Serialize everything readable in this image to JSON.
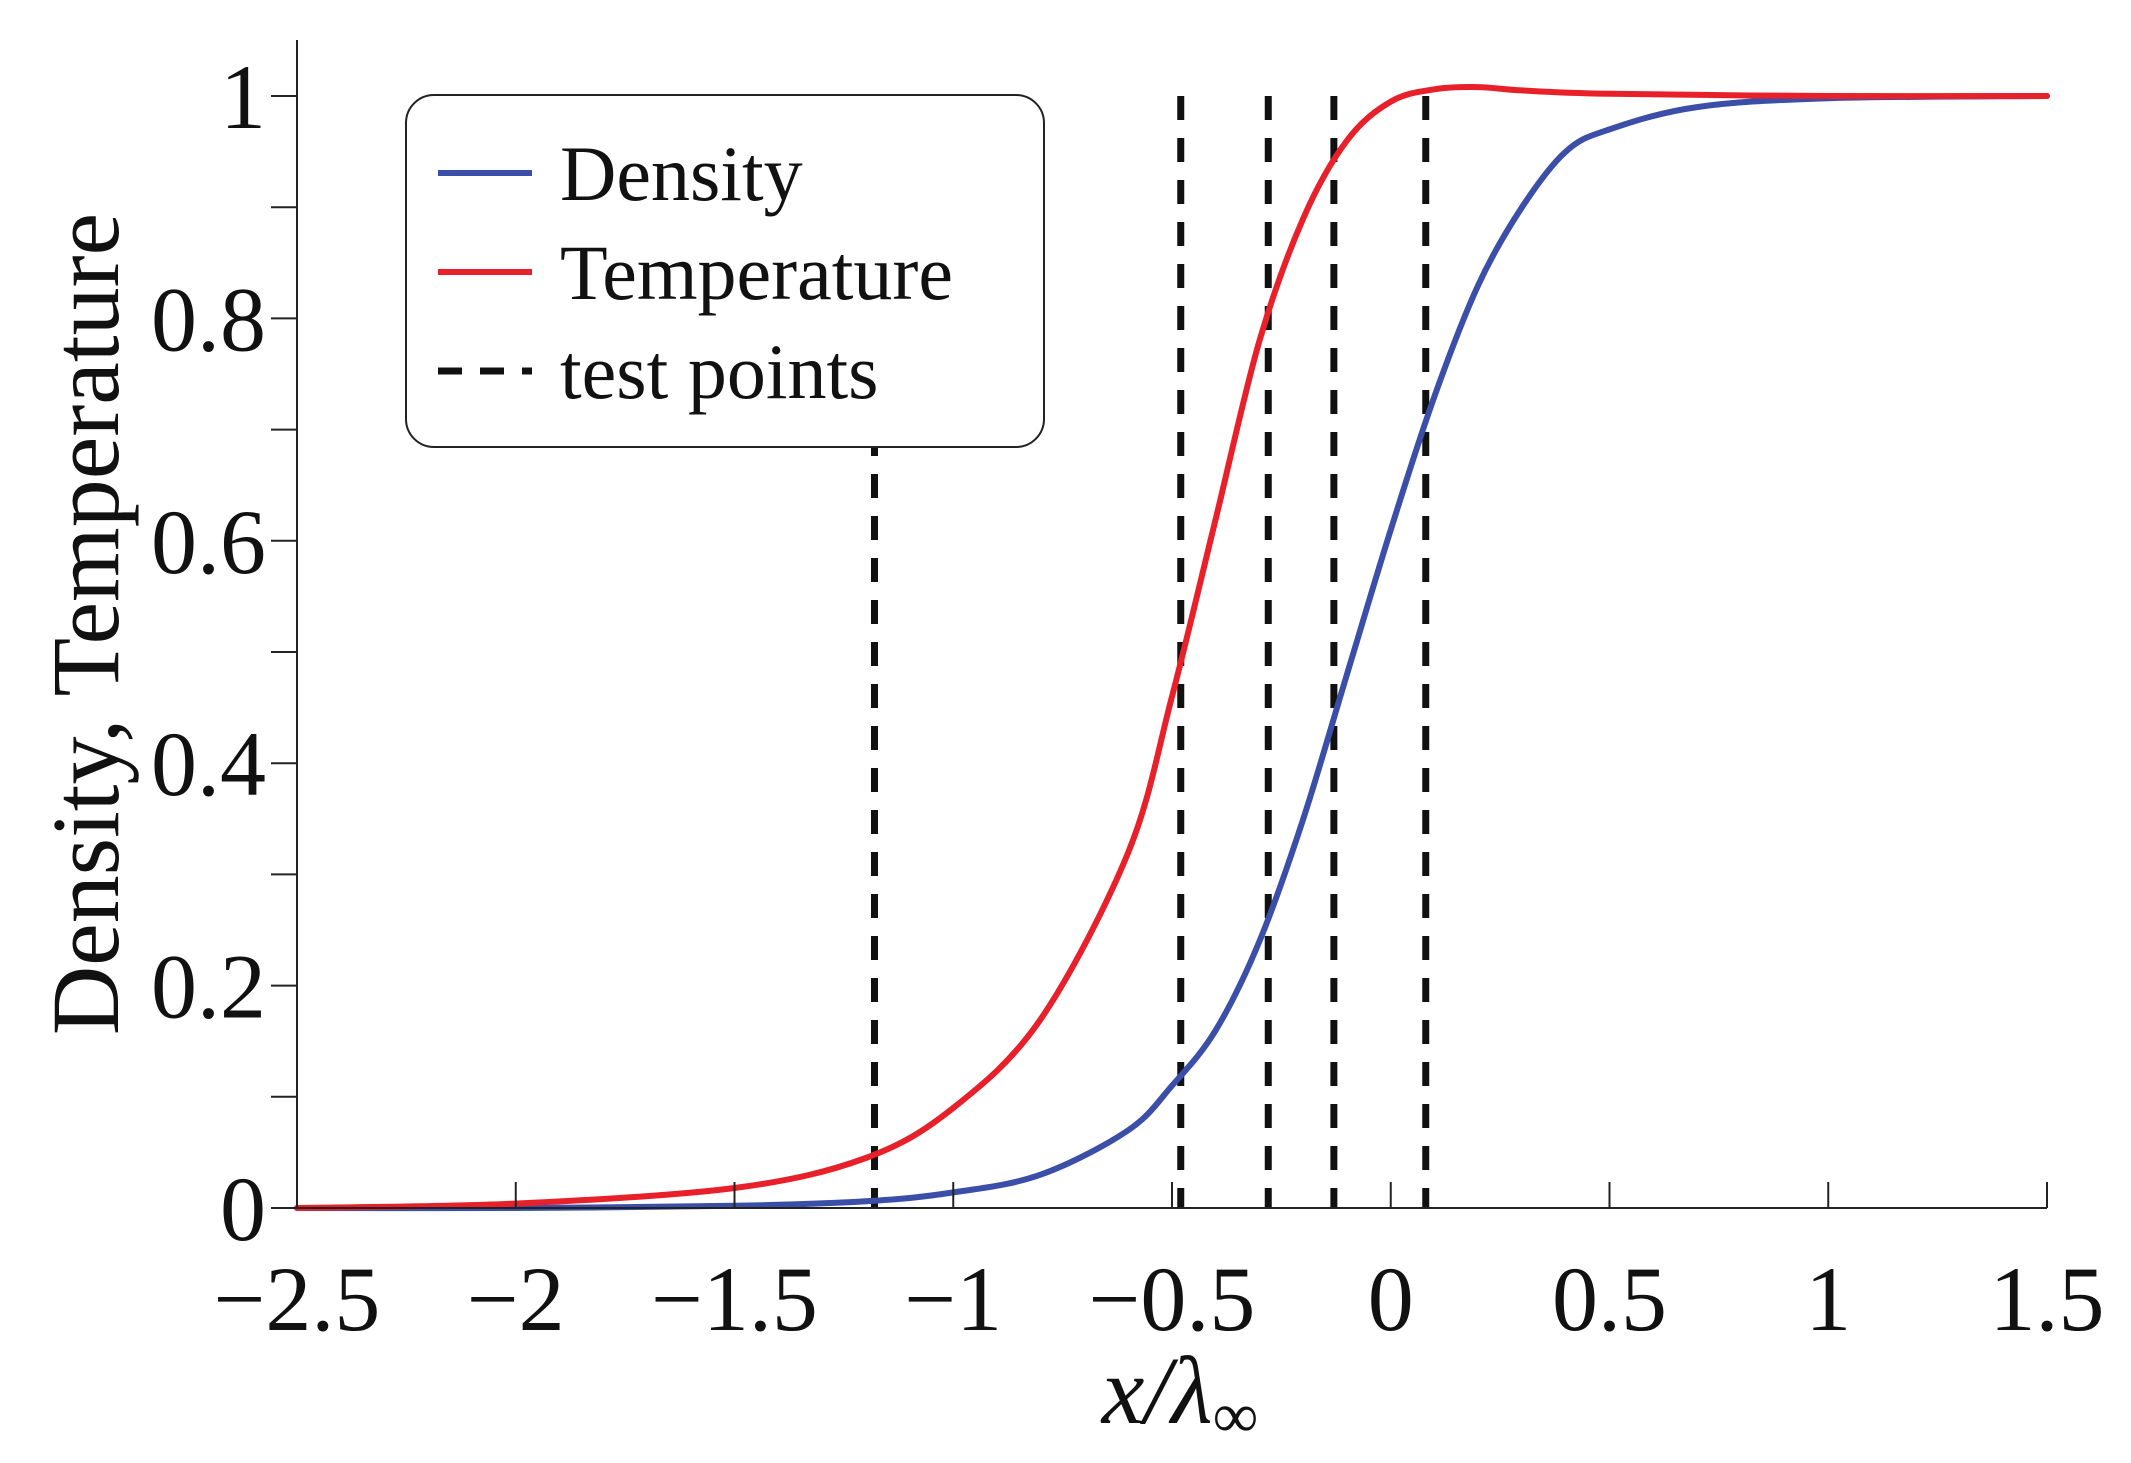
{
  "chart_data": {
    "type": "line",
    "title": "",
    "xlabel": "x/λ∞",
    "xlabel_main": "x/λ",
    "xlabel_sub": "∞",
    "ylabel": "Density, Temperature",
    "xlim": [
      -2.5,
      1.5
    ],
    "ylim": [
      0,
      1.05
    ],
    "grid": false,
    "legend_position": "top-left",
    "x_ticks": [
      -2.5,
      -2,
      -1.5,
      -1,
      -0.5,
      0,
      0.5,
      1,
      1.5
    ],
    "x_tick_labels": [
      "−2.5",
      "−2",
      "−1.5",
      "−1",
      "−0.5",
      "0",
      "0.5",
      "1",
      "1.5"
    ],
    "y_major_ticks": [
      0,
      0.2,
      0.4,
      0.6,
      0.8,
      1
    ],
    "y_tick_labels": [
      "0",
      "0.2",
      "0.4",
      "0.6",
      "0.8",
      "1"
    ],
    "y_minor_ticks": [
      0.1,
      0.3,
      0.5,
      0.7,
      0.9
    ],
    "series": [
      {
        "name": "Density",
        "color": "#3c4fa8",
        "x": [
          -2.5,
          -2.0,
          -1.5,
          -1.2,
          -1.0,
          -0.8,
          -0.6,
          -0.5,
          -0.4,
          -0.3,
          -0.2,
          -0.1,
          0.0,
          0.1,
          0.2,
          0.3,
          0.4,
          0.5,
          0.7,
          1.0,
          1.5
        ],
        "y": [
          0.0,
          0.0,
          0.002,
          0.006,
          0.014,
          0.03,
          0.07,
          0.11,
          0.16,
          0.24,
          0.35,
          0.48,
          0.61,
          0.73,
          0.83,
          0.9,
          0.95,
          0.97,
          0.99,
          0.998,
          1.0
        ]
      },
      {
        "name": "Temperature",
        "color": "#e8202a",
        "x": [
          -2.5,
          -2.0,
          -1.5,
          -1.2,
          -1.0,
          -0.8,
          -0.6,
          -0.5,
          -0.4,
          -0.3,
          -0.2,
          -0.1,
          0.0,
          0.1,
          0.2,
          0.3,
          0.5,
          1.0,
          1.5
        ],
        "y": [
          0.0,
          0.004,
          0.018,
          0.045,
          0.09,
          0.17,
          0.32,
          0.46,
          0.62,
          0.78,
          0.89,
          0.96,
          0.995,
          1.006,
          1.008,
          1.005,
          1.002,
          1.0,
          1.0
        ]
      }
    ],
    "test_points": {
      "name": "test points",
      "color": "#111111",
      "x": [
        -1.18,
        -0.48,
        -0.28,
        -0.13,
        0.08
      ]
    }
  }
}
